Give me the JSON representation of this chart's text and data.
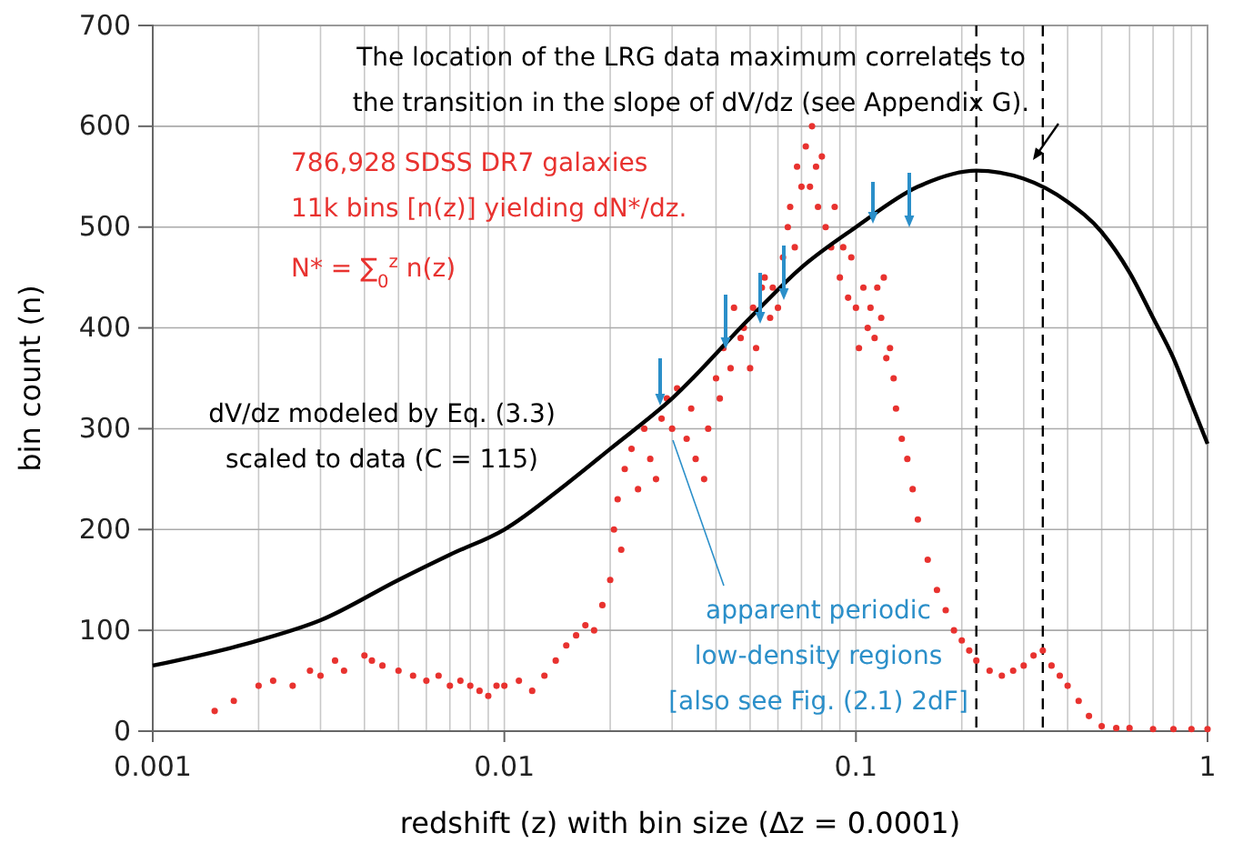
{
  "chart_data": {
    "type": "scatter",
    "xlabel": "redshift (z) with bin size (Δz = 0.0001)",
    "ylabel": "bin count (n)",
    "log": "x",
    "xlim": [
      0.001,
      1
    ],
    "ylim": [
      0,
      700
    ],
    "xticks": [
      0.001,
      {
        "value": 0.002,
        "label": null
      },
      {
        "value": 0.003,
        "label": null
      },
      {
        "value": 0.004,
        "label": null
      },
      {
        "value": 0.005,
        "label": null
      },
      {
        "value": 0.006,
        "label": null
      },
      {
        "value": 0.007,
        "label": null
      },
      {
        "value": 0.008,
        "label": null
      },
      {
        "value": 0.009,
        "label": null
      },
      0.01,
      {
        "value": 0.02,
        "label": null
      },
      {
        "value": 0.03,
        "label": null
      },
      {
        "value": 0.04,
        "label": null
      },
      {
        "value": 0.05,
        "label": null
      },
      {
        "value": 0.06,
        "label": null
      },
      {
        "value": 0.07,
        "label": null
      },
      {
        "value": 0.08,
        "label": null
      },
      {
        "value": 0.09,
        "label": null
      },
      0.1,
      {
        "value": 0.2,
        "label": null
      },
      {
        "value": 0.3,
        "label": null
      },
      {
        "value": 0.4,
        "label": null
      },
      {
        "value": 0.5,
        "label": null
      },
      {
        "value": 0.6,
        "label": null
      },
      {
        "value": 0.7,
        "label": null
      },
      {
        "value": 0.8,
        "label": null
      },
      {
        "value": 0.9,
        "label": null
      },
      1
    ],
    "yticks": [
      0,
      100,
      200,
      300,
      400,
      500,
      600,
      700
    ],
    "grid": true,
    "series": [
      {
        "color": "#e8322f",
        "marker": "circle",
        "x": [
          0.0015,
          0.0017,
          0.002,
          0.0022,
          0.0025,
          0.0028,
          0.003,
          0.0033,
          0.0035,
          0.004,
          0.0042,
          0.0045,
          0.005,
          0.0055,
          0.006,
          0.0065,
          0.007,
          0.0075,
          0.008,
          0.0085,
          0.009,
          0.0095,
          0.01,
          0.011,
          0.012,
          0.013,
          0.014,
          0.015,
          0.016,
          0.017,
          0.018,
          0.019,
          0.02,
          0.0205,
          0.021,
          0.0215,
          0.022,
          0.023,
          0.024,
          0.025,
          0.026,
          0.027,
          0.028,
          0.029,
          0.03,
          0.031,
          0.033,
          0.034,
          0.035,
          0.037,
          0.038,
          0.04,
          0.041,
          0.042,
          0.044,
          0.045,
          0.047,
          0.048,
          0.05,
          0.051,
          0.052,
          0.054,
          0.055,
          0.057,
          0.058,
          0.06,
          0.062,
          0.064,
          0.065,
          0.067,
          0.068,
          0.07,
          0.072,
          0.074,
          0.075,
          0.077,
          0.078,
          0.08,
          0.082,
          0.085,
          0.087,
          0.09,
          0.092,
          0.095,
          0.097,
          0.1,
          0.102,
          0.105,
          0.108,
          0.11,
          0.113,
          0.115,
          0.118,
          0.12,
          0.122,
          0.125,
          0.128,
          0.13,
          0.135,
          0.14,
          0.145,
          0.15,
          0.16,
          0.17,
          0.18,
          0.19,
          0.2,
          0.21,
          0.22,
          0.24,
          0.26,
          0.28,
          0.3,
          0.32,
          0.34,
          0.36,
          0.38,
          0.4,
          0.43,
          0.46,
          0.5,
          0.55,
          0.6,
          0.7,
          0.8,
          0.9,
          1
        ],
        "values": [
          20,
          30,
          45,
          50,
          45,
          60,
          55,
          70,
          60,
          75,
          70,
          65,
          60,
          55,
          50,
          55,
          45,
          50,
          45,
          40,
          35,
          45,
          45,
          50,
          40,
          55,
          70,
          85,
          95,
          105,
          100,
          125,
          150,
          200,
          230,
          180,
          260,
          280,
          240,
          300,
          270,
          250,
          310,
          330,
          300,
          340,
          290,
          320,
          270,
          250,
          300,
          350,
          330,
          380,
          360,
          420,
          390,
          400,
          360,
          420,
          380,
          440,
          450,
          410,
          440,
          420,
          470,
          500,
          520,
          480,
          560,
          540,
          580,
          540,
          600,
          560,
          520,
          570,
          500,
          480,
          520,
          450,
          480,
          430,
          470,
          420,
          380,
          440,
          400,
          420,
          390,
          440,
          410,
          450,
          370,
          380,
          350,
          320,
          290,
          270,
          240,
          210,
          170,
          140,
          120,
          100,
          90,
          80,
          70,
          60,
          55,
          60,
          65,
          75,
          80,
          65,
          55,
          45,
          30,
          15,
          5,
          3,
          3,
          2,
          2,
          2,
          2
        ]
      },
      {
        "type": "line",
        "color": "#000000",
        "marker": "none",
        "line_style": "solid",
        "x": [
          0.001,
          0.002,
          0.003,
          0.005,
          0.007,
          0.01,
          0.015,
          0.02,
          0.03,
          0.05,
          0.07,
          0.1,
          0.15,
          0.22,
          0.3,
          0.4,
          0.5,
          0.6,
          0.7,
          0.8,
          0.9,
          1
        ],
        "values": [
          65,
          90,
          110,
          150,
          175,
          200,
          245,
          280,
          330,
          410,
          460,
          500,
          540,
          556,
          548,
          525,
          495,
          455,
          410,
          370,
          325,
          285
        ]
      }
    ],
    "ref_lines": [
      {
        "axis": "x",
        "value": 0.22,
        "color": "#000000",
        "line_style": "dashed"
      },
      {
        "axis": "x",
        "value": 0.34,
        "color": "#000000",
        "line_style": "dashed"
      }
    ],
    "annotations": [
      "The  location of the LRG data maximum correlates to\nthe transition in the slope of dV/dz (see Appendix G).",
      "786,928 SDSS DR7 galaxies\n11k bins [n(z)] yielding dN*/dz.",
      "N* = ∑$_{0}$$^{z}$ n(z)",
      "dV/dz modeled by Eq. (3.3)\nscaled to data (C = 115)",
      "apparent periodic\nlow-density regions\n[also see Fig. (2.1) 2dF]"
    ]
  }
}
